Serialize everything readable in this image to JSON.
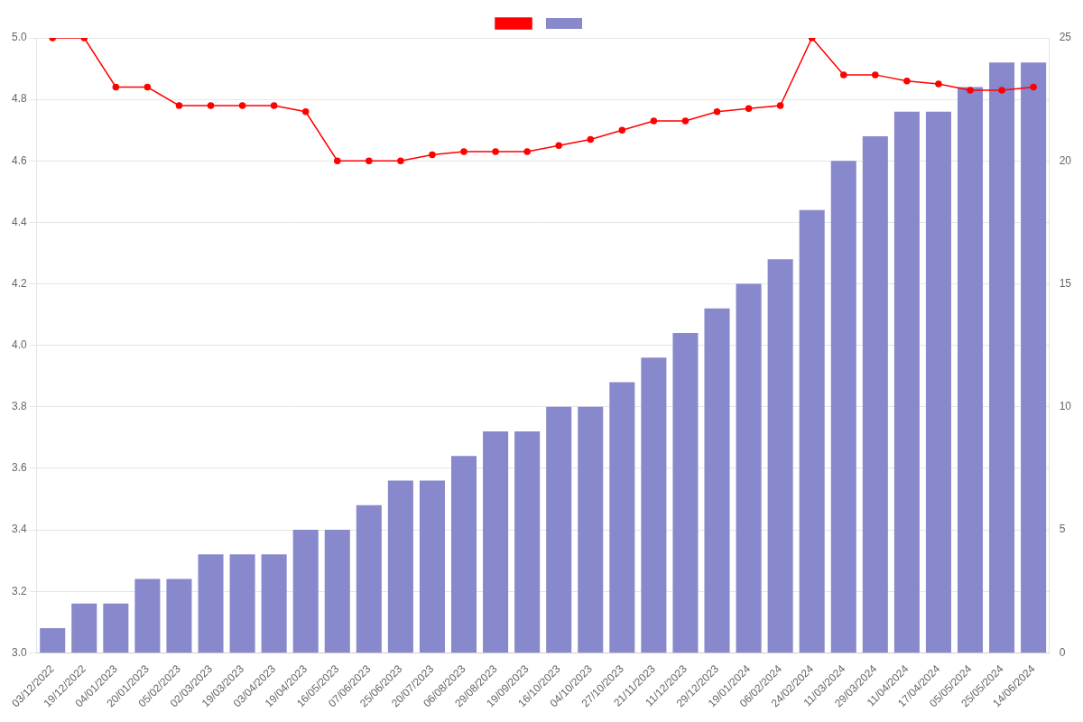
{
  "chart_data": {
    "type": "bar",
    "categories": [
      "03/12/2022",
      "19/12/2022",
      "04/01/2023",
      "20/01/2023",
      "05/02/2023",
      "02/03/2023",
      "19/03/2023",
      "03/04/2023",
      "19/04/2023",
      "16/05/2023",
      "07/06/2023",
      "25/06/2023",
      "20/07/2023",
      "06/08/2023",
      "29/08/2023",
      "19/09/2023",
      "16/10/2023",
      "04/10/2023",
      "27/10/2023",
      "21/11/2023",
      "11/12/2023",
      "29/12/2023",
      "19/01/2024",
      "06/02/2024",
      "24/02/2024",
      "11/03/2024",
      "29/03/2024",
      "11/04/2024",
      "17/04/2024",
      "05/05/2024",
      "25/05/2024",
      "14/06/2024"
    ],
    "series": [
      {
        "type": "line",
        "color": "#ff0000",
        "marker": "circle",
        "values": [
          5.0,
          5.0,
          4.84,
          4.84,
          4.78,
          4.78,
          4.78,
          4.78,
          4.76,
          4.6,
          4.6,
          4.6,
          4.62,
          4.63,
          4.63,
          4.63,
          4.65,
          4.67,
          4.7,
          4.73,
          4.73,
          4.76,
          4.77,
          4.78,
          5.0,
          4.88,
          4.88,
          4.86,
          4.85,
          4.83,
          4.83,
          4.84
        ]
      },
      {
        "type": "bar",
        "color": "#8888cc",
        "axis": "y2",
        "values": [
          1,
          2,
          2,
          3,
          3,
          4,
          4,
          4,
          5,
          5,
          6,
          7,
          7,
          8,
          9,
          9,
          10,
          10,
          11,
          12,
          13,
          14,
          15,
          16,
          18,
          20,
          21,
          22,
          22,
          23,
          24,
          24
        ]
      }
    ],
    "ylim": [
      3.0,
      5.0
    ],
    "yticks": [
      {
        "value": 3.0,
        "label": "3.0"
      },
      3.2,
      3.4,
      3.6,
      3.8,
      {
        "value": 4.0,
        "label": "4.0"
      },
      4.2,
      4.4,
      4.6,
      4.8,
      {
        "value": 5.0,
        "label": "5.0"
      }
    ],
    "y2lim": [
      0,
      25
    ],
    "y2ticks": [
      0,
      5,
      10,
      15,
      20,
      25
    ],
    "grid": true,
    "legend": "top"
  }
}
